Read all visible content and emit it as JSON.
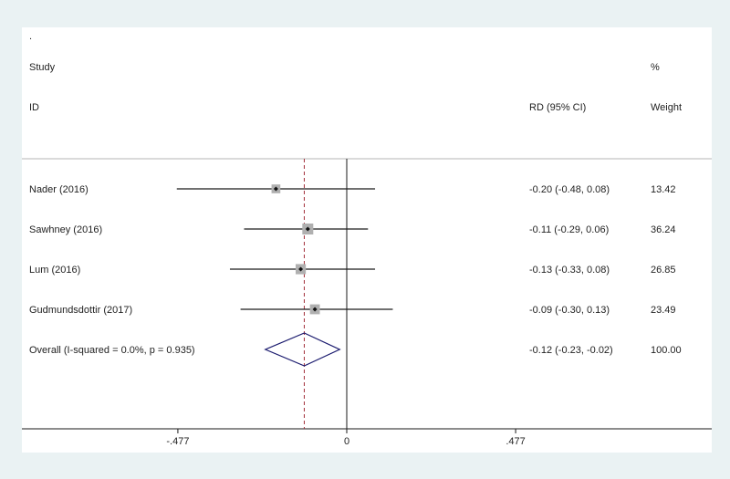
{
  "chart_data": {
    "type": "forest",
    "dot_mark": ".",
    "header": {
      "study_line1": "Study",
      "study_line2": "ID",
      "rd_label": "RD (95% CI)",
      "weight_line1": "%",
      "weight_line2": "Weight"
    },
    "studies": [
      {
        "label": "Nader (2016)",
        "rd": -0.2,
        "lo": -0.48,
        "hi": 0.08,
        "ci_text": "-0.20 (-0.48, 0.08)",
        "weight": 13.42,
        "weight_text": "13.42"
      },
      {
        "label": "Sawhney (2016)",
        "rd": -0.11,
        "lo": -0.29,
        "hi": 0.06,
        "ci_text": "-0.11 (-0.29, 0.06)",
        "weight": 36.24,
        "weight_text": "36.24"
      },
      {
        "label": "Lum (2016)",
        "rd": -0.13,
        "lo": -0.33,
        "hi": 0.08,
        "ci_text": "-0.13 (-0.33, 0.08)",
        "weight": 26.85,
        "weight_text": "26.85"
      },
      {
        "label": "Gudmundsdottir (2017)",
        "rd": -0.09,
        "lo": -0.3,
        "hi": 0.13,
        "ci_text": "-0.09 (-0.30, 0.13)",
        "weight": 23.49,
        "weight_text": "23.49"
      }
    ],
    "overall": {
      "label": "Overall  (I-squared = 0.0%, p = 0.935)",
      "rd": -0.12,
      "lo": -0.23,
      "hi": -0.02,
      "ci_text": "-0.12 (-0.23, -0.02)",
      "weight_text": "100.00"
    },
    "x_axis": {
      "ticks": [
        {
          "value": -0.477,
          "label": "-.477"
        },
        {
          "value": 0,
          "label": "0"
        },
        {
          "value": 0.477,
          "label": ".477"
        }
      ]
    },
    "colors": {
      "ci_line": "#1a1a1a",
      "marker_box": "#b0b0b0",
      "diamond": "#1a1a6e",
      "overall_line": "#a3303a",
      "null_line": "#1a1a1a",
      "separator": "#b5b5b5"
    }
  }
}
